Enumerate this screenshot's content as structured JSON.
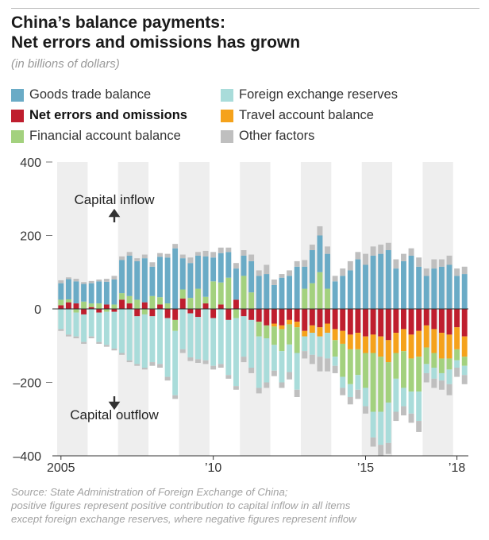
{
  "title_lines": [
    "China’s balance payments:",
    "Net errors and omissions has grown"
  ],
  "subtitle": "(in billions of dollars)",
  "source_lines": [
    "Source: State Administration of Foreign Exchange of China;",
    "positive figures represent positive contribution to capital inflow in all items",
    "except foreign exchange reserves, where negative figures represent inflow"
  ],
  "colors": {
    "goods": "#6aabc6",
    "reserves": "#a9dcda",
    "errors": "#bf1e2e",
    "travel": "#f5a21b",
    "financial": "#a3d17e",
    "other": "#bfbfbf",
    "band": "#eeeeee",
    "axis": "#333333"
  },
  "chart_data": {
    "type": "bar",
    "stacked": true,
    "title": "China’s balance payments: Net errors and omissions has grown",
    "ylabel": "in billions of dollars",
    "ylim": [
      -400,
      400
    ],
    "yticks": [
      400,
      200,
      0,
      -200,
      -400
    ],
    "ytick_labels": [
      "400",
      "200",
      "0",
      "–200",
      "–400"
    ],
    "xtick_labels": [
      {
        "label": "2005",
        "q": 0
      },
      {
        "label": "’10",
        "q": 20
      },
      {
        "label": "’15",
        "q": 40
      },
      {
        "label": "’18",
        "q": 52
      }
    ],
    "grid": false,
    "annotations": {
      "inflow": "Capital inflow",
      "outflow": "Capital outflow"
    },
    "legend": [
      {
        "key": "goods",
        "label": "Goods trade balance"
      },
      {
        "key": "reserves",
        "label": "Foreign exchange reserves"
      },
      {
        "key": "errors",
        "label": "Net errors and omissions",
        "bold": true
      },
      {
        "key": "travel",
        "label": "Travel account balance"
      },
      {
        "key": "financial",
        "label": "Financial account balance"
      },
      {
        "key": "other",
        "label": "Other factors"
      }
    ],
    "stack_order_positive": [
      "errors",
      "travel",
      "financial",
      "goods",
      "other"
    ],
    "stack_order_negative": [
      "errors",
      "travel",
      "financial",
      "reserves",
      "other"
    ],
    "periods": [
      "2005Q1",
      "2005Q2",
      "2005Q3",
      "2005Q4",
      "2006Q1",
      "2006Q2",
      "2006Q3",
      "2006Q4",
      "2007Q1",
      "2007Q2",
      "2007Q3",
      "2007Q4",
      "2008Q1",
      "2008Q2",
      "2008Q3",
      "2008Q4",
      "2009Q1",
      "2009Q2",
      "2009Q3",
      "2009Q4",
      "2010Q1",
      "2010Q2",
      "2010Q3",
      "2010Q4",
      "2011Q1",
      "2011Q2",
      "2011Q3",
      "2011Q4",
      "2012Q1",
      "2012Q2",
      "2012Q3",
      "2012Q4",
      "2013Q1",
      "2013Q2",
      "2013Q3",
      "2013Q4",
      "2014Q1",
      "2014Q2",
      "2014Q3",
      "2014Q4",
      "2015Q1",
      "2015Q2",
      "2015Q3",
      "2015Q4",
      "2016Q1",
      "2016Q2",
      "2016Q3",
      "2016Q4",
      "2017Q1",
      "2017Q2",
      "2017Q3",
      "2017Q4",
      "2018Q1",
      "2018Q2"
    ],
    "series": [
      {
        "key": "goods",
        "name": "Goods trade balance",
        "values": [
          45,
          55,
          60,
          48,
          55,
          60,
          62,
          68,
          90,
          110,
          105,
          120,
          80,
          110,
          125,
          165,
          85,
          95,
          90,
          110,
          65,
          80,
          70,
          85,
          55,
          85,
          90,
          95,
          65,
          85,
          90,
          115,
          60,
          90,
          100,
          95,
          75,
          90,
          105,
          135,
          120,
          145,
          150,
          160,
          110,
          130,
          145,
          115,
          90,
          110,
          115,
          120,
          90,
          95
        ]
      },
      {
        "key": "reserves",
        "name": "Foreign exchange reserves",
        "values": [
          -55,
          -70,
          -65,
          -75,
          -75,
          -80,
          -90,
          -100,
          -120,
          -140,
          -130,
          -145,
          -125,
          -150,
          -160,
          -175,
          -110,
          -120,
          -115,
          -140,
          -130,
          -150,
          -150,
          -185,
          -110,
          -130,
          -140,
          -120,
          -70,
          -85,
          -75,
          -100,
          -40,
          -60,
          -55,
          -70,
          -25,
          -30,
          -35,
          -40,
          -50,
          -70,
          -90,
          -110,
          -90,
          -50,
          -60,
          -80,
          -25,
          -30,
          -20,
          -40,
          -20,
          -25
        ]
      },
      {
        "key": "errors",
        "name": "Net errors and omissions",
        "values": [
          10,
          18,
          15,
          -15,
          5,
          -10,
          12,
          -8,
          25,
          15,
          -20,
          18,
          -20,
          12,
          -25,
          -30,
          28,
          -12,
          -22,
          15,
          -25,
          12,
          -30,
          25,
          -20,
          -30,
          -35,
          -45,
          -40,
          -45,
          -30,
          -35,
          -60,
          -45,
          -50,
          -40,
          -55,
          -60,
          -70,
          -65,
          -75,
          -70,
          -75,
          -85,
          -65,
          -55,
          -70,
          -60,
          -45,
          -55,
          -65,
          -70,
          -50,
          -75
        ]
      },
      {
        "key": "travel",
        "name": "Travel account balance",
        "values": [
          0,
          0,
          0,
          0,
          0,
          0,
          0,
          0,
          0,
          0,
          0,
          0,
          0,
          0,
          0,
          0,
          0,
          0,
          0,
          0,
          0,
          0,
          0,
          0,
          0,
          0,
          0,
          0,
          -8,
          -10,
          -12,
          -15,
          -15,
          -20,
          -25,
          -25,
          -30,
          -35,
          -40,
          -45,
          -45,
          -50,
          -55,
          -60,
          -55,
          -60,
          -65,
          -70,
          -60,
          -65,
          -70,
          -65,
          -60,
          -55
        ]
      },
      {
        "key": "financial",
        "name": "Financial account balance",
        "values": [
          15,
          8,
          -10,
          20,
          10,
          15,
          -8,
          12,
          18,
          20,
          25,
          -15,
          35,
          20,
          15,
          -30,
          25,
          30,
          55,
          18,
          75,
          60,
          85,
          -25,
          90,
          45,
          -40,
          -35,
          -50,
          -60,
          -55,
          -70,
          55,
          70,
          100,
          55,
          -45,
          -90,
          -95,
          -70,
          -95,
          -160,
          -150,
          -110,
          -70,
          -100,
          -90,
          -95,
          -45,
          -40,
          -40,
          -30,
          -30,
          -25
        ]
      },
      {
        "key": "other",
        "name": "Other factors",
        "values": [
          8,
          5,
          7,
          5,
          6,
          5,
          8,
          10,
          10,
          10,
          8,
          10,
          12,
          10,
          10,
          12,
          10,
          15,
          10,
          15,
          15,
          15,
          12,
          15,
          15,
          18,
          15,
          25,
          15,
          10,
          15,
          15,
          18,
          15,
          25,
          20,
          15,
          20,
          25,
          20,
          30,
          25,
          25,
          20,
          25,
          20,
          20,
          25,
          20,
          25,
          20,
          25,
          20,
          20
        ]
      }
    ],
    "negative_residuals_other": [
      -5,
      -5,
      -5,
      -5,
      -5,
      -5,
      -5,
      -5,
      -5,
      -5,
      -5,
      -5,
      -10,
      -10,
      -10,
      -10,
      -10,
      -10,
      -10,
      -10,
      -10,
      -10,
      -10,
      -10,
      -15,
      -15,
      -15,
      -15,
      -15,
      -15,
      -20,
      -20,
      -20,
      -25,
      -40,
      -35,
      -20,
      -20,
      -20,
      -25,
      -20,
      -25,
      -30,
      -30,
      -25,
      -25,
      -25,
      -30,
      -25,
      -25,
      -25,
      -30,
      -25,
      -25
    ]
  }
}
